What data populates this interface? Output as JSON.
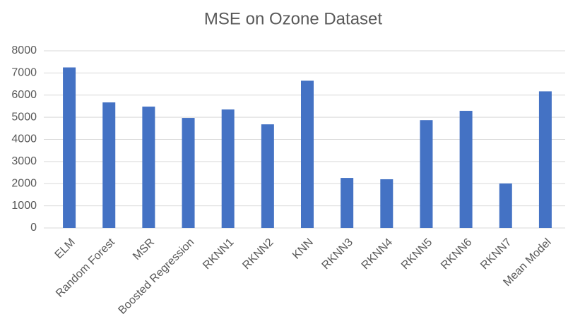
{
  "chart_data": {
    "type": "bar",
    "title": "MSE on Ozone Dataset",
    "categories": [
      "ELM",
      "Random Forest",
      "MSR",
      "Boosted Regression",
      "RKNN1",
      "RKNN2",
      "KNN",
      "RKNN3",
      "RKNN4",
      "RKNN5",
      "RKNN6",
      "RKNN7",
      "Mean Model"
    ],
    "values": [
      7250,
      5670,
      5480,
      4970,
      5350,
      4680,
      6650,
      2260,
      2200,
      4870,
      5290,
      2010,
      6170
    ],
    "color": "#4472c4",
    "ylim": [
      0,
      8000
    ],
    "yticks": [
      0,
      1000,
      2000,
      3000,
      4000,
      5000,
      6000,
      7000,
      8000
    ],
    "grid": true
  }
}
